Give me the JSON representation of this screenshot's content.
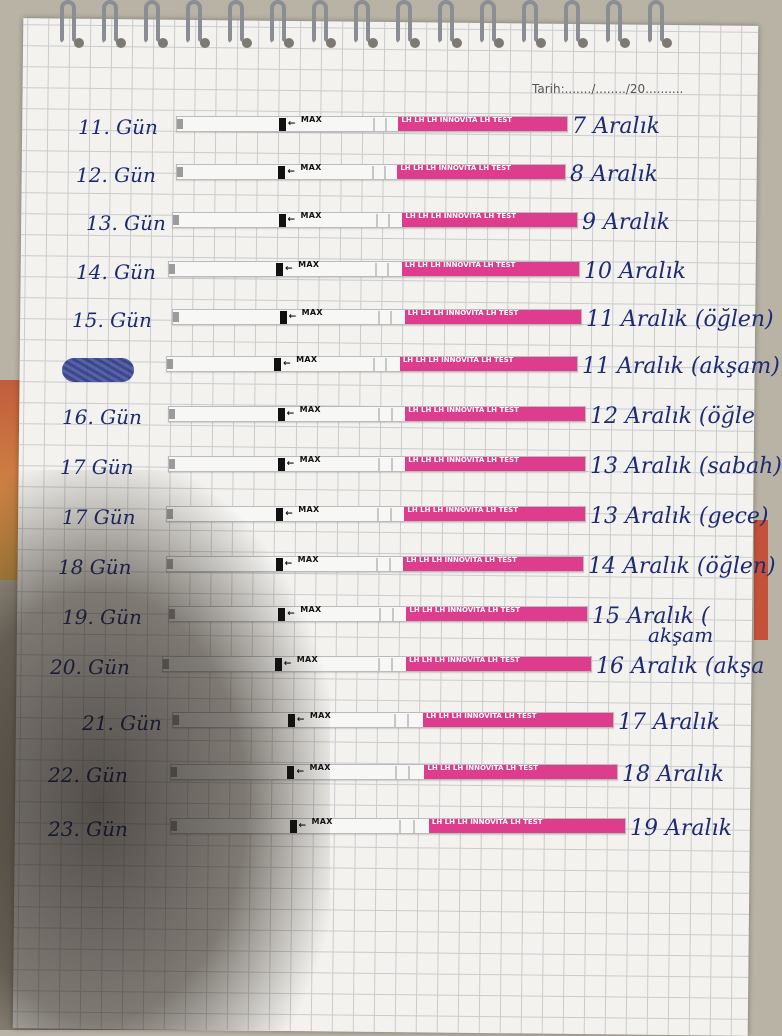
{
  "page": {
    "date_label": "Tarih:......./......../20..........",
    "strip": {
      "brand_text": "LH LH LH INNOVITA LH TEST",
      "max_text": "MAX"
    },
    "colors": {
      "ink": "#1e2a74",
      "strip_pink": "#de3d8e",
      "grid": "#c9cbcf",
      "paper": "#f3f2ee"
    },
    "rows": [
      {
        "day": "11. Gün",
        "date": "7 Aralık"
      },
      {
        "day": "12. Gün",
        "date": "8 Aralık"
      },
      {
        "day": "13. Gün",
        "date": "9 Aralık"
      },
      {
        "day": "14. Gün",
        "date": "10 Aralık"
      },
      {
        "day": "15. Gün",
        "date": "11 Aralık (öğlen)"
      },
      {
        "day": "",
        "date": "11 Aralık (akşam)"
      },
      {
        "day": "16. Gün",
        "date": "12 Aralık (öğle"
      },
      {
        "day": "17 Gün",
        "date": "13 Aralık (sabah)"
      },
      {
        "day": "17 Gün",
        "date": "13 Aralık (gece)"
      },
      {
        "day": "18 Gün",
        "date": "14 Aralık (öğlen)"
      },
      {
        "day": "19. Gün",
        "date": "15 Aralık ("
      },
      {
        "day": "20. Gün",
        "date": "16 Aralık (akşa"
      },
      {
        "day": "21. Gün",
        "date": "17 Aralık"
      },
      {
        "day": "22. Gün",
        "date": "18 Aralık"
      },
      {
        "day": "23. Gün",
        "date": "19 Aralık"
      }
    ],
    "extra_note": "akşam"
  }
}
